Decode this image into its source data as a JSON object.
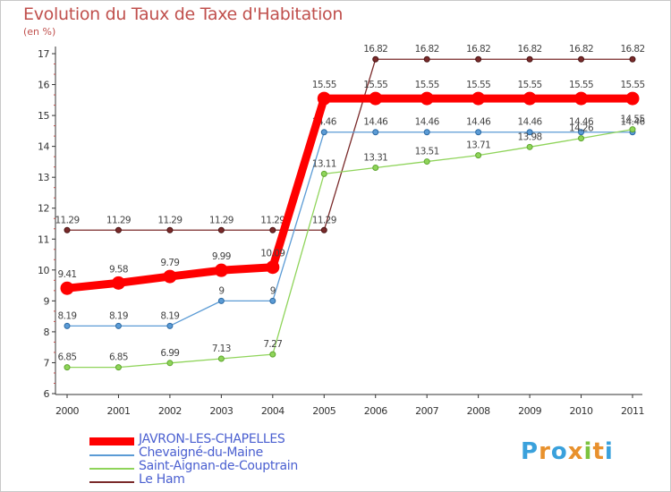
{
  "header": {
    "title": "Evolution du Taux de Taxe d'Habitation",
    "unit_label": "(en %)"
  },
  "logo": {
    "text": "Proxiti",
    "letter_colors": [
      "#3aa1dc",
      "#e8912d",
      "#3aa1dc",
      "#e8912d",
      "#7cc33f",
      "#e8912d",
      "#3aa1dc"
    ]
  },
  "chart_data": {
    "type": "line",
    "title": "Evolution du Taux de Taxe d'Habitation",
    "ylabel": "(en %)",
    "xlabel": "",
    "ylim": [
      6,
      17
    ],
    "y_ticks": [
      "6",
      "7",
      "8",
      "9",
      "10",
      "11",
      "12",
      "13",
      "14",
      "15",
      "16",
      "17"
    ],
    "categories": [
      "2000",
      "2001",
      "2002",
      "2003",
      "2004",
      "2005",
      "2006",
      "2007",
      "2008",
      "2009",
      "2010",
      "2011"
    ],
    "grid": false,
    "legend_position": "bottom-left",
    "series": [
      {
        "name": "Le Ham",
        "color": "#7a2a2a",
        "values": [
          11.29,
          11.29,
          11.29,
          11.29,
          11.29,
          11.29,
          16.82,
          16.82,
          16.82,
          16.82,
          16.82,
          16.82
        ],
        "labels": [
          "11.29",
          "11.29",
          "11.29",
          "11.29",
          "11.29",
          "11.29",
          "16.82",
          "16.82",
          "16.82",
          "16.82",
          "16.82",
          "16.82"
        ]
      },
      {
        "name": "Chevaigné-du-Maine",
        "color": "#5b9bd5",
        "values": [
          8.19,
          8.19,
          8.19,
          9,
          9,
          14.46,
          14.46,
          14.46,
          14.46,
          14.46,
          14.46,
          14.46
        ],
        "labels": [
          "8.19",
          "8.19",
          "8.19",
          "9",
          "9",
          "14.46",
          "14.46",
          "14.46",
          "14.46",
          "14.46",
          "14.46",
          "14.46"
        ]
      },
      {
        "name": "Saint-Aignan-de-Couptrain",
        "color": "#8fd45a",
        "values": [
          6.85,
          6.85,
          6.99,
          7.13,
          7.27,
          13.11,
          13.31,
          13.51,
          13.71,
          13.98,
          14.26,
          14.55
        ],
        "labels": [
          "6.85",
          "6.85",
          "6.99",
          "7.13",
          "7.27",
          "13.11",
          "13.31",
          "13.51",
          "13.71",
          "13.98",
          "14.26",
          "14.55"
        ]
      },
      {
        "name": "JAVRON-LES-CHAPELLES",
        "color": "#ff0000",
        "values": [
          9.41,
          9.58,
          9.79,
          9.99,
          10.09,
          15.55,
          15.55,
          15.55,
          15.55,
          15.55,
          15.55,
          15.55
        ],
        "labels": [
          "9.41",
          "9.58",
          "9.79",
          "9.99",
          "10.09",
          "15.55",
          "15.55",
          "15.55",
          "15.55",
          "15.55",
          "15.55",
          "15.55"
        ]
      }
    ],
    "legend_order": [
      "JAVRON-LES-CHAPELLES",
      "Chevaigné-du-Maine",
      "Saint-Aignan-de-Couptrain",
      "Le Ham"
    ]
  }
}
